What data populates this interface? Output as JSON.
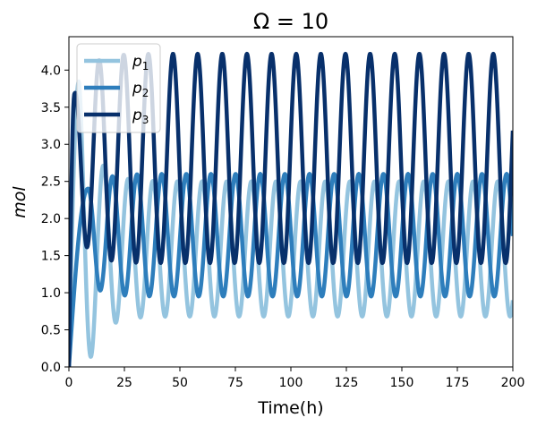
{
  "chart_data": {
    "type": "line",
    "title": "Ω = 10",
    "xlabel": "Time(h)",
    "ylabel": "mol",
    "xlim": [
      0,
      200
    ],
    "ylim": [
      0,
      4.45
    ],
    "xticks": [
      0,
      25,
      50,
      75,
      100,
      125,
      150,
      175,
      200
    ],
    "yticks": [
      0.0,
      0.5,
      1.0,
      1.5,
      2.0,
      2.5,
      3.0,
      3.5,
      4.0
    ],
    "legend_position": "upper-left",
    "series": [
      {
        "name": "p1",
        "label_base": "p",
        "label_sub": "1",
        "color": "#94c4df",
        "period": 11.1,
        "min": 0.68,
        "max": 2.5,
        "first_peak": 4.5,
        "initial_peak": 3.85
      },
      {
        "name": "p2",
        "label_base": "p",
        "label_sub": "2",
        "color": "#2e7ebc",
        "period": 11.1,
        "min": 0.95,
        "max": 2.6,
        "first_peak": 8.5,
        "initial_peak": 2.4
      },
      {
        "name": "p3",
        "label_base": "p",
        "label_sub": "3",
        "color": "#08306b",
        "period": 11.1,
        "min": 1.4,
        "max": 4.22,
        "first_peak": 2.5,
        "initial_peak": 3.68
      }
    ]
  }
}
